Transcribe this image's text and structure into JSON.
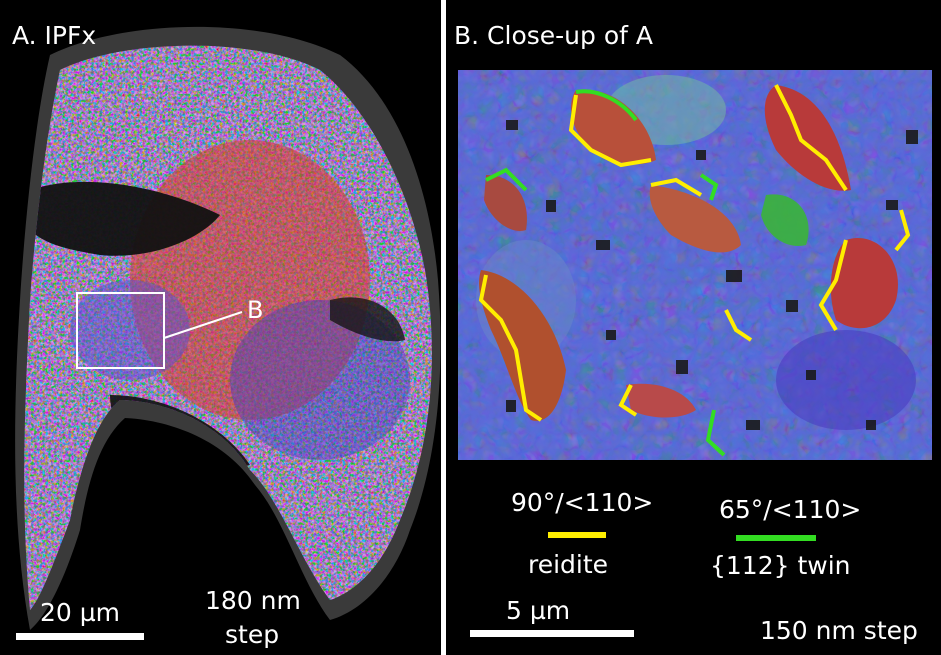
{
  "panel_a": {
    "title": "A. IPFx",
    "inset_label": "B",
    "scale_label": "20 µm",
    "step_label_line1": "180 nm",
    "step_label_line2": "step"
  },
  "panel_b": {
    "title": "B. Close-up of A",
    "legend": [
      {
        "angle": "90°/<110>",
        "name": "reidite",
        "color": "#ffee00"
      },
      {
        "angle": "65°/<110>",
        "name": "{112} twin",
        "color": "#33dd22"
      }
    ],
    "scale_label": "5 µm",
    "step_label": "150 nm step"
  }
}
